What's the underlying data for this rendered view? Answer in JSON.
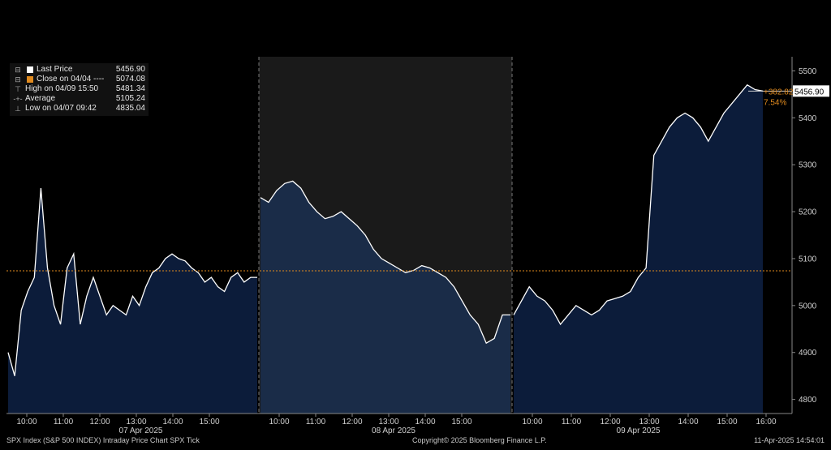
{
  "legend": [
    {
      "symbol": "square-white",
      "label": "Last Price",
      "value": "5456.90"
    },
    {
      "symbol": "square-orange",
      "label": "Close on 04/04 ----",
      "value": "5074.08"
    },
    {
      "symbol": "high-marker",
      "label": "High on 04/09 15:50",
      "value": "5481.34"
    },
    {
      "symbol": "avg-marker",
      "label": "Average",
      "value": "5105.24"
    },
    {
      "symbol": "low-marker",
      "label": "Low on 04/07 09:42",
      "value": "4835.04"
    }
  ],
  "colors": {
    "area": "#0c1c3a",
    "area_mid": "#1a2c48",
    "shade": "#1a1a1a",
    "price": "#ffffff",
    "reference": "#e08a1e"
  },
  "chart_data": {
    "type": "line",
    "title": "SPX Index (S&P 500 INDEX) Intraday Price Chart SPX  Tick",
    "ylim": [
      4770,
      5530
    ],
    "yticks": [
      4800,
      4900,
      5000,
      5100,
      5200,
      5300,
      5400,
      5500
    ],
    "reference_line": 5074.08,
    "last_price": "5456.90",
    "change_abs": "+382.82",
    "change_pct": "7.54%",
    "days": [
      {
        "label": "07 Apr 2025",
        "ticks": [
          "10:00",
          "11:00",
          "12:00",
          "13:00",
          "14:00",
          "15:00"
        ],
        "series": [
          4900,
          4850,
          4990,
          5030,
          5060,
          5250,
          5080,
          5000,
          4960,
          5080,
          5110,
          4960,
          5020,
          5060,
          5020,
          4980,
          5000,
          4990,
          4980,
          5020,
          5000,
          5040,
          5070,
          5080,
          5100,
          5110,
          5100,
          5095,
          5080,
          5070,
          5050,
          5060,
          5040,
          5030,
          5060,
          5070,
          5050,
          5060,
          5060
        ]
      },
      {
        "label": "08 Apr 2025",
        "ticks": [
          "10:00",
          "11:00",
          "12:00",
          "13:00",
          "14:00",
          "15:00"
        ],
        "series": [
          5230,
          5220,
          5245,
          5260,
          5265,
          5250,
          5220,
          5200,
          5185,
          5190,
          5200,
          5185,
          5170,
          5150,
          5120,
          5100,
          5090,
          5080,
          5070,
          5075,
          5085,
          5080,
          5070,
          5060,
          5040,
          5010,
          4980,
          4960,
          4920,
          4930,
          4980,
          4980
        ]
      },
      {
        "label": "09 Apr 2025",
        "ticks": [
          "10:00",
          "11:00",
          "12:00",
          "13:00",
          "14:00",
          "15:00",
          "16:00"
        ],
        "series": [
          4980,
          5010,
          5040,
          5020,
          5010,
          4990,
          4960,
          4980,
          5000,
          4990,
          4980,
          4990,
          5010,
          5015,
          5020,
          5030,
          5060,
          5080,
          5320,
          5350,
          5380,
          5400,
          5410,
          5400,
          5380,
          5350,
          5380,
          5410,
          5430,
          5450,
          5470,
          5460,
          5457
        ]
      }
    ]
  },
  "footer": {
    "left": "SPX Index (S&P 500 INDEX) Intraday Price Chart SPX  Tick",
    "center": "Copyright© 2025 Bloomberg Finance L.P.",
    "right": "11-Apr-2025 14:54:01"
  }
}
